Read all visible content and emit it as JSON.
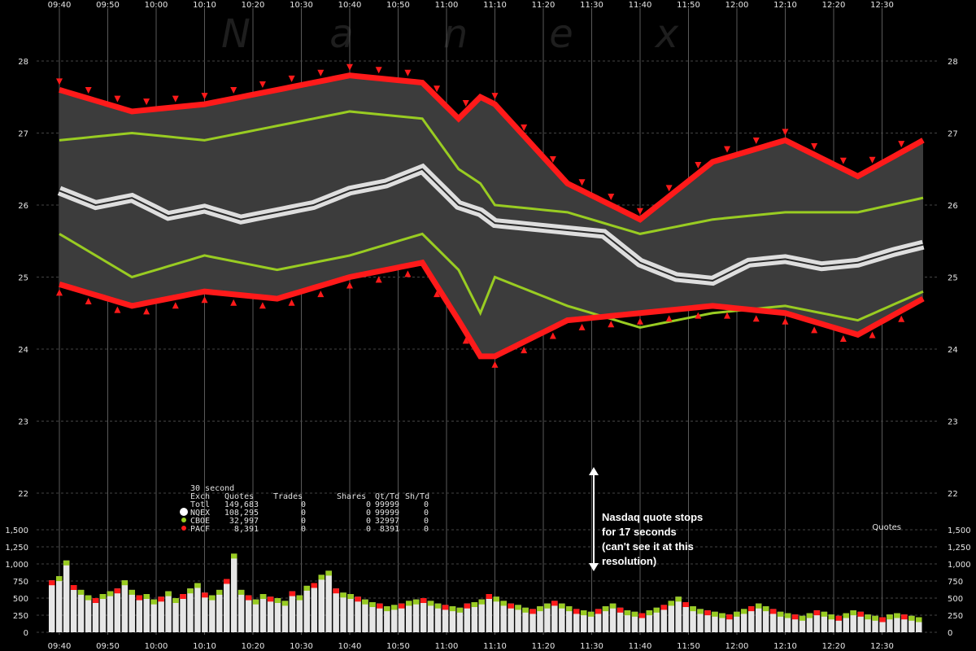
{
  "watermark": [
    "N",
    "a",
    "n",
    "e",
    "x"
  ],
  "chart_data": {
    "type": "line",
    "x_ticks": [
      "09:40",
      "09:50",
      "10:00",
      "10:10",
      "10:20",
      "10:30",
      "10:40",
      "10:50",
      "11:00",
      "11:10",
      "11:20",
      "11:30",
      "11:40",
      "11:50",
      "12:00",
      "12:10",
      "12:20",
      "12:30"
    ],
    "price_axis": {
      "ticks": [
        "28",
        "27",
        "26",
        "25",
        "24",
        "23",
        "22"
      ],
      "ylim": [
        21.5,
        28.5
      ]
    },
    "volume_axis": {
      "ticks": [
        "1,500",
        "1,250",
        "1,000",
        "750",
        "500",
        "250",
        "0"
      ],
      "ylim": [
        0,
        1500
      ]
    },
    "volume_label": "Quotes",
    "series": [
      {
        "name": "NQEX",
        "color": "#f0f0f0",
        "x": [
          0,
          5,
          10,
          15,
          20,
          25,
          30,
          35,
          40,
          45,
          50,
          55,
          58,
          60,
          65,
          70,
          75,
          80,
          85,
          90,
          95,
          100,
          105,
          110,
          115,
          119
        ],
        "y": [
          26.2,
          26.0,
          26.1,
          25.85,
          25.95,
          25.8,
          25.9,
          26.0,
          26.2,
          26.3,
          26.5,
          26.0,
          25.9,
          25.75,
          25.7,
          25.65,
          25.6,
          25.2,
          25.0,
          24.95,
          25.2,
          25.25,
          25.15,
          25.2,
          25.35,
          25.45
        ]
      },
      {
        "name": "CBOE",
        "color": "#99cc22",
        "x": [
          0,
          10,
          20,
          30,
          40,
          50,
          55,
          58,
          60,
          70,
          80,
          90,
          100,
          110,
          119
        ],
        "y_high": [
          26.9,
          27.0,
          26.9,
          27.1,
          27.3,
          27.2,
          26.5,
          26.3,
          26.0,
          25.9,
          25.6,
          25.8,
          25.9,
          25.9,
          26.1
        ],
        "y_low": [
          25.6,
          25.0,
          25.3,
          25.1,
          25.3,
          25.6,
          25.1,
          24.5,
          25.0,
          24.6,
          24.3,
          24.5,
          24.6,
          24.4,
          24.8
        ]
      },
      {
        "name": "PACF",
        "color": "#ff1a1a",
        "x": [
          0,
          10,
          20,
          30,
          40,
          50,
          55,
          58,
          60,
          70,
          80,
          90,
          100,
          110,
          119
        ],
        "y_high": [
          27.6,
          27.3,
          27.4,
          27.6,
          27.8,
          27.7,
          27.2,
          27.5,
          27.4,
          26.3,
          25.8,
          26.6,
          26.9,
          26.4,
          26.9
        ],
        "y_low": [
          24.9,
          24.6,
          24.8,
          24.7,
          25.0,
          25.2,
          24.4,
          23.9,
          23.9,
          24.4,
          24.5,
          24.6,
          24.5,
          24.2,
          24.7
        ]
      }
    ],
    "volume_values": [
      760,
      820,
      1050,
      690,
      620,
      540,
      500,
      560,
      600,
      640,
      760,
      620,
      540,
      560,
      480,
      520,
      600,
      500,
      560,
      640,
      720,
      580,
      540,
      620,
      780,
      1150,
      620,
      540,
      480,
      560,
      520,
      500,
      460,
      600,
      540,
      680,
      720,
      840,
      900,
      640,
      580,
      560,
      520,
      480,
      440,
      420,
      380,
      400,
      420,
      460,
      480,
      500,
      460,
      420,
      400,
      380,
      360,
      420,
      440,
      480,
      560,
      520,
      460,
      420,
      400,
      360,
      340,
      380,
      420,
      460,
      420,
      380,
      340,
      320,
      300,
      340,
      380,
      420,
      360,
      320,
      300,
      280,
      320,
      360,
      400,
      460,
      520,
      440,
      380,
      340,
      320,
      300,
      280,
      260,
      300,
      340,
      380,
      420,
      380,
      340,
      300,
      280,
      260,
      240,
      280,
      320,
      300,
      260,
      240,
      280,
      320,
      300,
      260,
      240,
      220,
      260,
      280,
      260,
      240,
      220
    ]
  },
  "stats_table": {
    "title": "30 second",
    "headers": [
      "Exch",
      "Quotes",
      "Trades",
      "Shares",
      "Qt/Td",
      "Sh/Td"
    ],
    "rows": [
      {
        "exch": "Totl",
        "quotes": "149,683",
        "trades": "0",
        "shares": "0",
        "qttd": "99999",
        "shtd": "0",
        "dot": ""
      },
      {
        "exch": "NQEX",
        "quotes": "108,295",
        "trades": "0",
        "shares": "0",
        "qttd": "99999",
        "shtd": "0",
        "dot": "#ffffff"
      },
      {
        "exch": "CBOE",
        "quotes": "32,997",
        "trades": "0",
        "shares": "0",
        "qttd": "32997",
        "shtd": "0",
        "dot": "#99cc22"
      },
      {
        "exch": "PACF",
        "quotes": "8,391",
        "trades": "0",
        "shares": "0",
        "qttd": "8391",
        "shtd": "0",
        "dot": "#ff1a1a"
      }
    ]
  },
  "annotation": {
    "lines": [
      "Nasdaq quote stops",
      "for 17 seconds",
      "(can't see it at this",
      "resolution)"
    ]
  }
}
